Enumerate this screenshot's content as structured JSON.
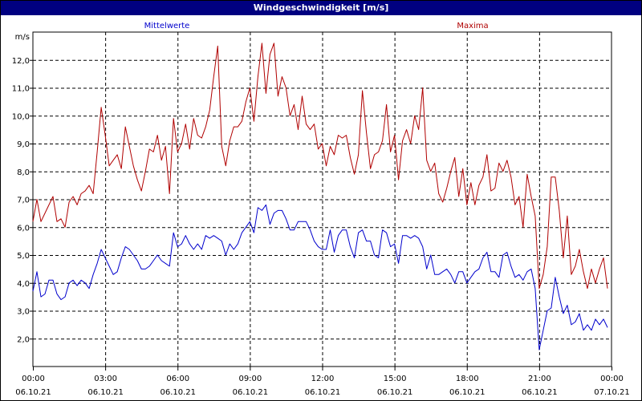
{
  "window": {
    "title": "Windgeschwindigkeit [m/s]"
  },
  "colors": {
    "title_bar": "#000080",
    "mean": "#0000cc",
    "max": "#b00000",
    "grid": "#000000"
  },
  "chart_data": {
    "type": "line",
    "title": "Windgeschwindigkeit [m/s]",
    "ylabel": "m/s",
    "ylim": [
      1.0,
      13.0
    ],
    "y_ticks": [
      "2,0",
      "3,0",
      "4,0",
      "5,0",
      "6,0",
      "7,0",
      "8,0",
      "9,0",
      "10,0",
      "11,0",
      "12,0"
    ],
    "xlim": [
      "06.10.21 00:00",
      "07.10.21 00:00"
    ],
    "x_ticks": [
      {
        "time": "00:00",
        "date": "06.10.21"
      },
      {
        "time": "03:00",
        "date": "06.10.21"
      },
      {
        "time": "06:00",
        "date": "06.10.21"
      },
      {
        "time": "09:00",
        "date": "06.10.21"
      },
      {
        "time": "12:00",
        "date": "06.10.21"
      },
      {
        "time": "15:00",
        "date": "06.10.21"
      },
      {
        "time": "18:00",
        "date": "06.10.21"
      },
      {
        "time": "21:00",
        "date": "06.10.21"
      },
      {
        "time": "00:00",
        "date": "07.10.21"
      }
    ],
    "grid": true,
    "series": [
      {
        "name": "Mittelwerte",
        "color": "#0000cc",
        "points": [
          [
            "00:00",
            3.7
          ],
          [
            "00:10",
            4.4
          ],
          [
            "00:20",
            3.5
          ],
          [
            "00:30",
            3.6
          ],
          [
            "00:40",
            4.1
          ],
          [
            "00:50",
            4.1
          ],
          [
            "01:00",
            3.6
          ],
          [
            "01:10",
            3.4
          ],
          [
            "01:20",
            3.5
          ],
          [
            "01:30",
            4.0
          ],
          [
            "01:40",
            4.1
          ],
          [
            "01:50",
            3.9
          ],
          [
            "02:00",
            4.1
          ],
          [
            "02:10",
            4.0
          ],
          [
            "02:20",
            3.8
          ],
          [
            "02:30",
            4.3
          ],
          [
            "02:40",
            4.7
          ],
          [
            "02:50",
            5.2
          ],
          [
            "03:00",
            4.9
          ],
          [
            "03:10",
            4.6
          ],
          [
            "03:20",
            4.3
          ],
          [
            "03:30",
            4.4
          ],
          [
            "03:40",
            4.9
          ],
          [
            "03:50",
            5.3
          ],
          [
            "04:00",
            5.2
          ],
          [
            "04:10",
            5.0
          ],
          [
            "04:20",
            4.8
          ],
          [
            "04:30",
            4.5
          ],
          [
            "04:40",
            4.5
          ],
          [
            "04:50",
            4.6
          ],
          [
            "05:00",
            4.8
          ],
          [
            "05:10",
            5.0
          ],
          [
            "05:20",
            4.8
          ],
          [
            "05:30",
            4.7
          ],
          [
            "05:40",
            4.6
          ],
          [
            "05:50",
            5.8
          ],
          [
            "06:00",
            5.3
          ],
          [
            "06:10",
            5.4
          ],
          [
            "06:20",
            5.7
          ],
          [
            "06:30",
            5.4
          ],
          [
            "06:40",
            5.2
          ],
          [
            "06:50",
            5.4
          ],
          [
            "07:00",
            5.2
          ],
          [
            "07:10",
            5.7
          ],
          [
            "07:20",
            5.6
          ],
          [
            "07:30",
            5.7
          ],
          [
            "07:40",
            5.6
          ],
          [
            "07:50",
            5.5
          ],
          [
            "08:00",
            5.0
          ],
          [
            "08:10",
            5.4
          ],
          [
            "08:20",
            5.2
          ],
          [
            "08:30",
            5.4
          ],
          [
            "08:40",
            5.8
          ],
          [
            "08:50",
            6.0
          ],
          [
            "09:00",
            6.2
          ],
          [
            "09:10",
            5.8
          ],
          [
            "09:20",
            6.7
          ],
          [
            "09:30",
            6.6
          ],
          [
            "09:40",
            6.8
          ],
          [
            "09:50",
            6.1
          ],
          [
            "10:00",
            6.5
          ],
          [
            "10:10",
            6.6
          ],
          [
            "10:20",
            6.6
          ],
          [
            "10:30",
            6.3
          ],
          [
            "10:40",
            5.9
          ],
          [
            "10:50",
            5.9
          ],
          [
            "11:00",
            6.2
          ],
          [
            "11:10",
            6.2
          ],
          [
            "11:20",
            6.2
          ],
          [
            "11:30",
            5.9
          ],
          [
            "11:40",
            5.5
          ],
          [
            "11:50",
            5.3
          ],
          [
            "12:00",
            5.2
          ],
          [
            "12:10",
            5.2
          ],
          [
            "12:20",
            5.9
          ],
          [
            "12:30",
            5.1
          ],
          [
            "12:40",
            5.7
          ],
          [
            "12:50",
            5.9
          ],
          [
            "13:00",
            5.9
          ],
          [
            "13:10",
            5.3
          ],
          [
            "13:20",
            4.9
          ],
          [
            "13:30",
            5.8
          ],
          [
            "13:40",
            5.9
          ],
          [
            "13:50",
            5.5
          ],
          [
            "14:00",
            5.5
          ],
          [
            "14:10",
            5.0
          ],
          [
            "14:20",
            4.9
          ],
          [
            "14:30",
            5.9
          ],
          [
            "14:40",
            5.8
          ],
          [
            "14:50",
            5.3
          ],
          [
            "15:00",
            5.4
          ],
          [
            "15:10",
            4.7
          ],
          [
            "15:20",
            5.7
          ],
          [
            "15:30",
            5.7
          ],
          [
            "15:40",
            5.6
          ],
          [
            "15:50",
            5.7
          ],
          [
            "16:00",
            5.6
          ],
          [
            "16:10",
            5.3
          ],
          [
            "16:20",
            4.5
          ],
          [
            "16:30",
            5.0
          ],
          [
            "16:40",
            4.3
          ],
          [
            "16:50",
            4.3
          ],
          [
            "17:00",
            4.4
          ],
          [
            "17:10",
            4.5
          ],
          [
            "17:20",
            4.3
          ],
          [
            "17:30",
            4.0
          ],
          [
            "17:40",
            4.4
          ],
          [
            "17:50",
            4.4
          ],
          [
            "18:00",
            4.0
          ],
          [
            "18:10",
            4.2
          ],
          [
            "18:20",
            4.4
          ],
          [
            "18:30",
            4.5
          ],
          [
            "18:40",
            4.9
          ],
          [
            "18:50",
            5.1
          ],
          [
            "19:00",
            4.4
          ],
          [
            "19:10",
            4.4
          ],
          [
            "19:20",
            4.2
          ],
          [
            "19:30",
            5.0
          ],
          [
            "19:40",
            5.1
          ],
          [
            "19:50",
            4.6
          ],
          [
            "20:00",
            4.2
          ],
          [
            "20:10",
            4.3
          ],
          [
            "20:20",
            4.1
          ],
          [
            "20:30",
            4.4
          ],
          [
            "20:40",
            4.5
          ],
          [
            "20:50",
            3.8
          ],
          [
            "21:00",
            1.6
          ],
          [
            "21:10",
            2.3
          ],
          [
            "21:20",
            3.0
          ],
          [
            "21:30",
            3.1
          ],
          [
            "21:40",
            4.2
          ],
          [
            "21:50",
            3.5
          ],
          [
            "22:00",
            2.9
          ],
          [
            "22:10",
            3.2
          ],
          [
            "22:20",
            2.5
          ],
          [
            "22:30",
            2.6
          ],
          [
            "22:40",
            2.9
          ],
          [
            "22:50",
            2.3
          ],
          [
            "23:00",
            2.5
          ],
          [
            "23:10",
            2.3
          ],
          [
            "23:20",
            2.7
          ],
          [
            "23:30",
            2.5
          ],
          [
            "23:40",
            2.7
          ],
          [
            "23:50",
            2.4
          ]
        ]
      },
      {
        "name": "Maxima",
        "color": "#b00000",
        "points": [
          [
            "00:00",
            6.2
          ],
          [
            "00:10",
            7.0
          ],
          [
            "00:20",
            6.2
          ],
          [
            "00:30",
            6.5
          ],
          [
            "00:40",
            6.8
          ],
          [
            "00:50",
            7.1
          ],
          [
            "01:00",
            6.2
          ],
          [
            "01:10",
            6.3
          ],
          [
            "01:20",
            6.0
          ],
          [
            "01:30",
            6.9
          ],
          [
            "01:40",
            7.1
          ],
          [
            "01:50",
            6.8
          ],
          [
            "02:00",
            7.2
          ],
          [
            "02:10",
            7.3
          ],
          [
            "02:20",
            7.5
          ],
          [
            "02:30",
            7.2
          ],
          [
            "02:40",
            8.7
          ],
          [
            "02:50",
            10.3
          ],
          [
            "03:00",
            9.3
          ],
          [
            "03:10",
            8.2
          ],
          [
            "03:20",
            8.4
          ],
          [
            "03:30",
            8.6
          ],
          [
            "03:40",
            8.1
          ],
          [
            "03:50",
            9.6
          ],
          [
            "04:00",
            8.9
          ],
          [
            "04:10",
            8.2
          ],
          [
            "04:20",
            7.7
          ],
          [
            "04:30",
            7.3
          ],
          [
            "04:40",
            8.0
          ],
          [
            "04:50",
            8.8
          ],
          [
            "05:00",
            8.7
          ],
          [
            "05:10",
            9.3
          ],
          [
            "05:20",
            8.4
          ],
          [
            "05:30",
            8.9
          ],
          [
            "05:40",
            7.2
          ],
          [
            "05:50",
            9.9
          ],
          [
            "06:00",
            8.7
          ],
          [
            "06:10",
            9.0
          ],
          [
            "06:20",
            9.7
          ],
          [
            "06:30",
            8.8
          ],
          [
            "06:40",
            9.9
          ],
          [
            "06:50",
            9.3
          ],
          [
            "07:00",
            9.2
          ],
          [
            "07:10",
            9.6
          ],
          [
            "07:20",
            10.2
          ],
          [
            "07:30",
            11.4
          ],
          [
            "07:40",
            12.5
          ],
          [
            "07:50",
            8.9
          ],
          [
            "08:00",
            8.2
          ],
          [
            "08:10",
            9.1
          ],
          [
            "08:20",
            9.6
          ],
          [
            "08:30",
            9.6
          ],
          [
            "08:40",
            9.8
          ],
          [
            "08:50",
            10.5
          ],
          [
            "09:00",
            11.0
          ],
          [
            "09:10",
            9.8
          ],
          [
            "09:20",
            11.4
          ],
          [
            "09:30",
            12.6
          ],
          [
            "09:40",
            10.8
          ],
          [
            "09:50",
            12.2
          ],
          [
            "10:00",
            12.6
          ],
          [
            "10:10",
            10.7
          ],
          [
            "10:20",
            11.4
          ],
          [
            "10:30",
            11.0
          ],
          [
            "10:40",
            10.0
          ],
          [
            "10:50",
            10.4
          ],
          [
            "11:00",
            9.5
          ],
          [
            "11:10",
            10.7
          ],
          [
            "11:20",
            9.7
          ],
          [
            "11:30",
            9.5
          ],
          [
            "11:40",
            9.7
          ],
          [
            "11:50",
            8.8
          ],
          [
            "12:00",
            9.0
          ],
          [
            "12:10",
            8.2
          ],
          [
            "12:20",
            8.9
          ],
          [
            "12:30",
            8.6
          ],
          [
            "12:40",
            9.3
          ],
          [
            "12:50",
            9.2
          ],
          [
            "13:00",
            9.3
          ],
          [
            "13:10",
            8.5
          ],
          [
            "13:20",
            7.9
          ],
          [
            "13:30",
            8.6
          ],
          [
            "13:40",
            10.9
          ],
          [
            "13:50",
            9.4
          ],
          [
            "14:00",
            8.1
          ],
          [
            "14:10",
            8.6
          ],
          [
            "14:20",
            8.7
          ],
          [
            "14:30",
            9.1
          ],
          [
            "14:40",
            10.4
          ],
          [
            "14:50",
            8.7
          ],
          [
            "15:00",
            9.3
          ],
          [
            "15:10",
            7.7
          ],
          [
            "15:20",
            9.1
          ],
          [
            "15:30",
            9.5
          ],
          [
            "15:40",
            9.0
          ],
          [
            "15:50",
            10.0
          ],
          [
            "16:00",
            9.5
          ],
          [
            "16:10",
            11.0
          ],
          [
            "16:20",
            8.4
          ],
          [
            "16:30",
            8.0
          ],
          [
            "16:40",
            8.3
          ],
          [
            "16:50",
            7.2
          ],
          [
            "17:00",
            6.9
          ],
          [
            "17:10",
            7.4
          ],
          [
            "17:20",
            8.0
          ],
          [
            "17:30",
            8.5
          ],
          [
            "17:40",
            7.1
          ],
          [
            "17:50",
            8.1
          ],
          [
            "18:00",
            6.8
          ],
          [
            "18:10",
            7.6
          ],
          [
            "18:20",
            6.8
          ],
          [
            "18:30",
            7.5
          ],
          [
            "18:40",
            7.8
          ],
          [
            "18:50",
            8.6
          ],
          [
            "19:00",
            7.3
          ],
          [
            "19:10",
            7.4
          ],
          [
            "19:20",
            8.3
          ],
          [
            "19:30",
            8.0
          ],
          [
            "19:40",
            8.4
          ],
          [
            "19:50",
            7.8
          ],
          [
            "20:00",
            6.8
          ],
          [
            "20:10",
            7.1
          ],
          [
            "20:20",
            6.0
          ],
          [
            "20:30",
            7.9
          ],
          [
            "20:40",
            7.1
          ],
          [
            "20:50",
            6.4
          ],
          [
            "21:00",
            3.8
          ],
          [
            "21:10",
            4.3
          ],
          [
            "21:20",
            5.3
          ],
          [
            "21:30",
            7.8
          ],
          [
            "21:40",
            7.8
          ],
          [
            "21:50",
            6.6
          ],
          [
            "22:00",
            4.9
          ],
          [
            "22:10",
            6.4
          ],
          [
            "22:20",
            4.3
          ],
          [
            "22:30",
            4.6
          ],
          [
            "22:40",
            5.2
          ],
          [
            "22:50",
            4.4
          ],
          [
            "23:00",
            3.8
          ],
          [
            "23:10",
            4.5
          ],
          [
            "23:20",
            4.0
          ],
          [
            "23:30",
            4.5
          ],
          [
            "23:40",
            4.9
          ],
          [
            "23:50",
            3.8
          ]
        ]
      }
    ]
  }
}
